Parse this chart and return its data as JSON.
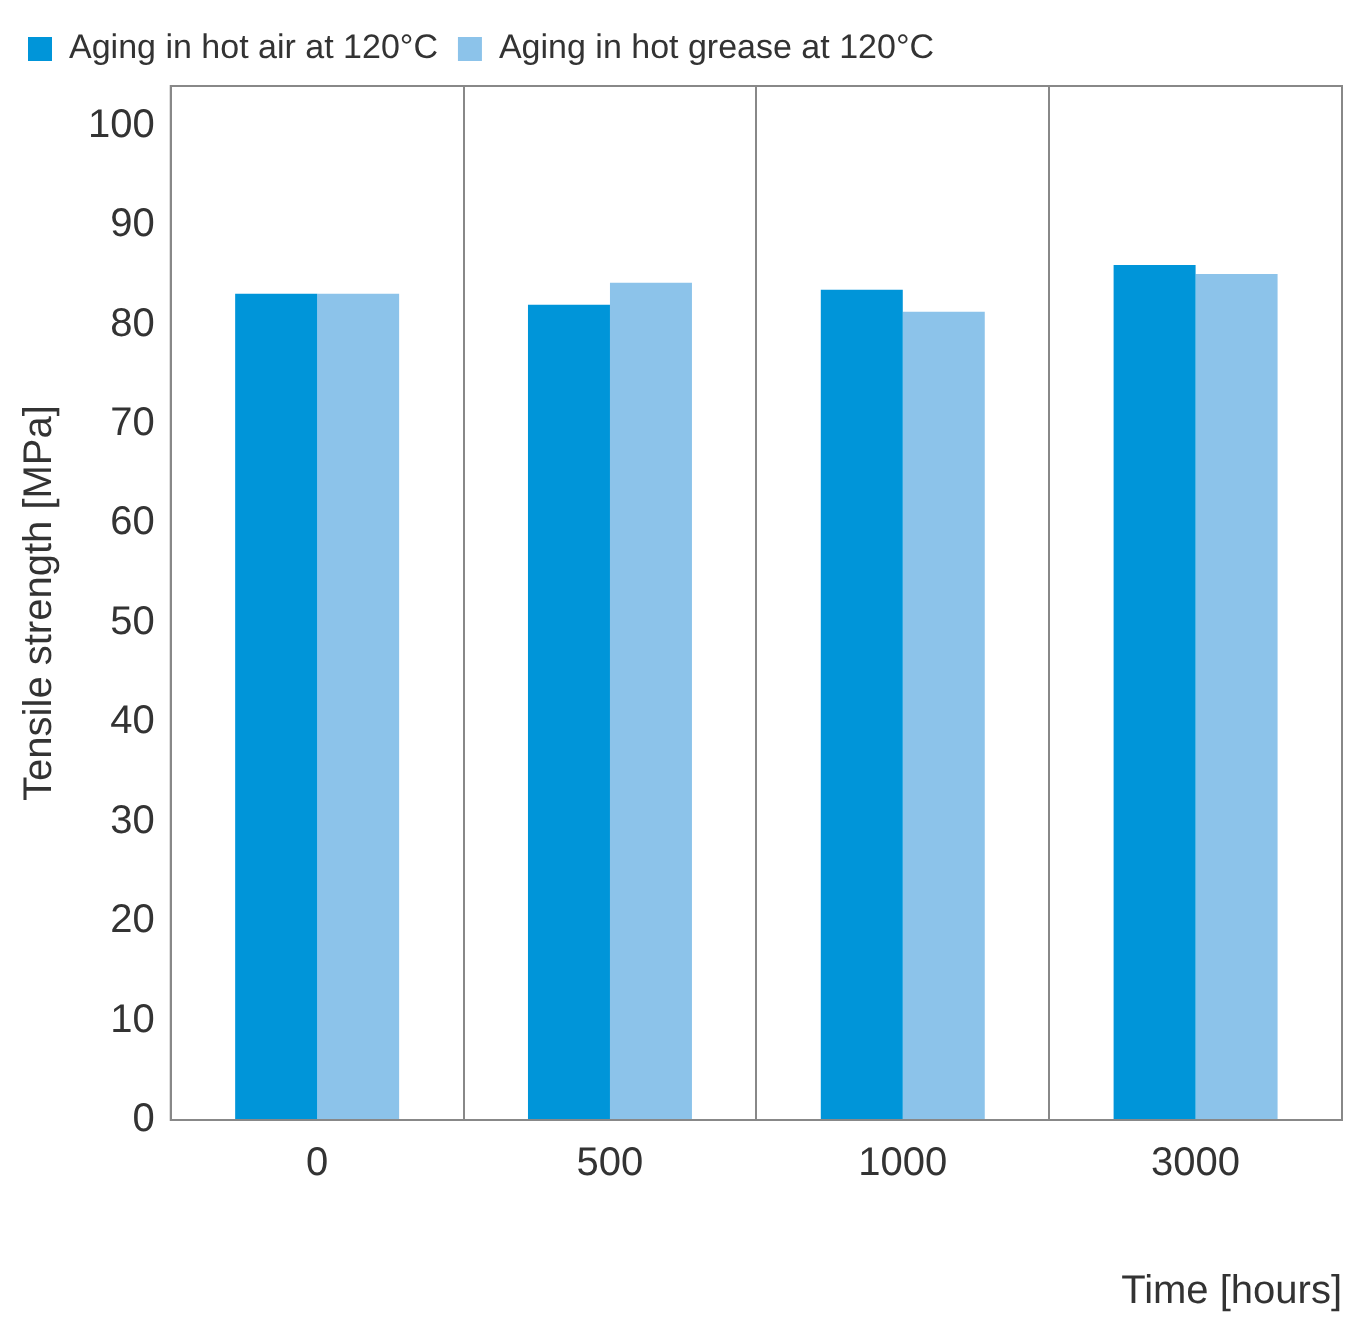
{
  "chart_data": {
    "type": "bar",
    "xlabel": "Time [hours]",
    "ylabel": "Tensile strength [MPa]",
    "categories": [
      "0",
      "500",
      "1000",
      "3000"
    ],
    "series": [
      {
        "name": "Aging in hot air at 120°C",
        "color": "#0095d9",
        "values": [
          83.1,
          82,
          83.5,
          86
        ]
      },
      {
        "name": "Aging in hot grease at 120°C",
        "color": "#8cc3ea",
        "values": [
          83.1,
          84.2,
          81.3,
          85.1
        ]
      }
    ],
    "ylim": [
      0,
      104
    ],
    "yticks": [
      0,
      10,
      20,
      30,
      40,
      50,
      60,
      70,
      80,
      90,
      100
    ],
    "grid": "x",
    "legend": "top left"
  }
}
